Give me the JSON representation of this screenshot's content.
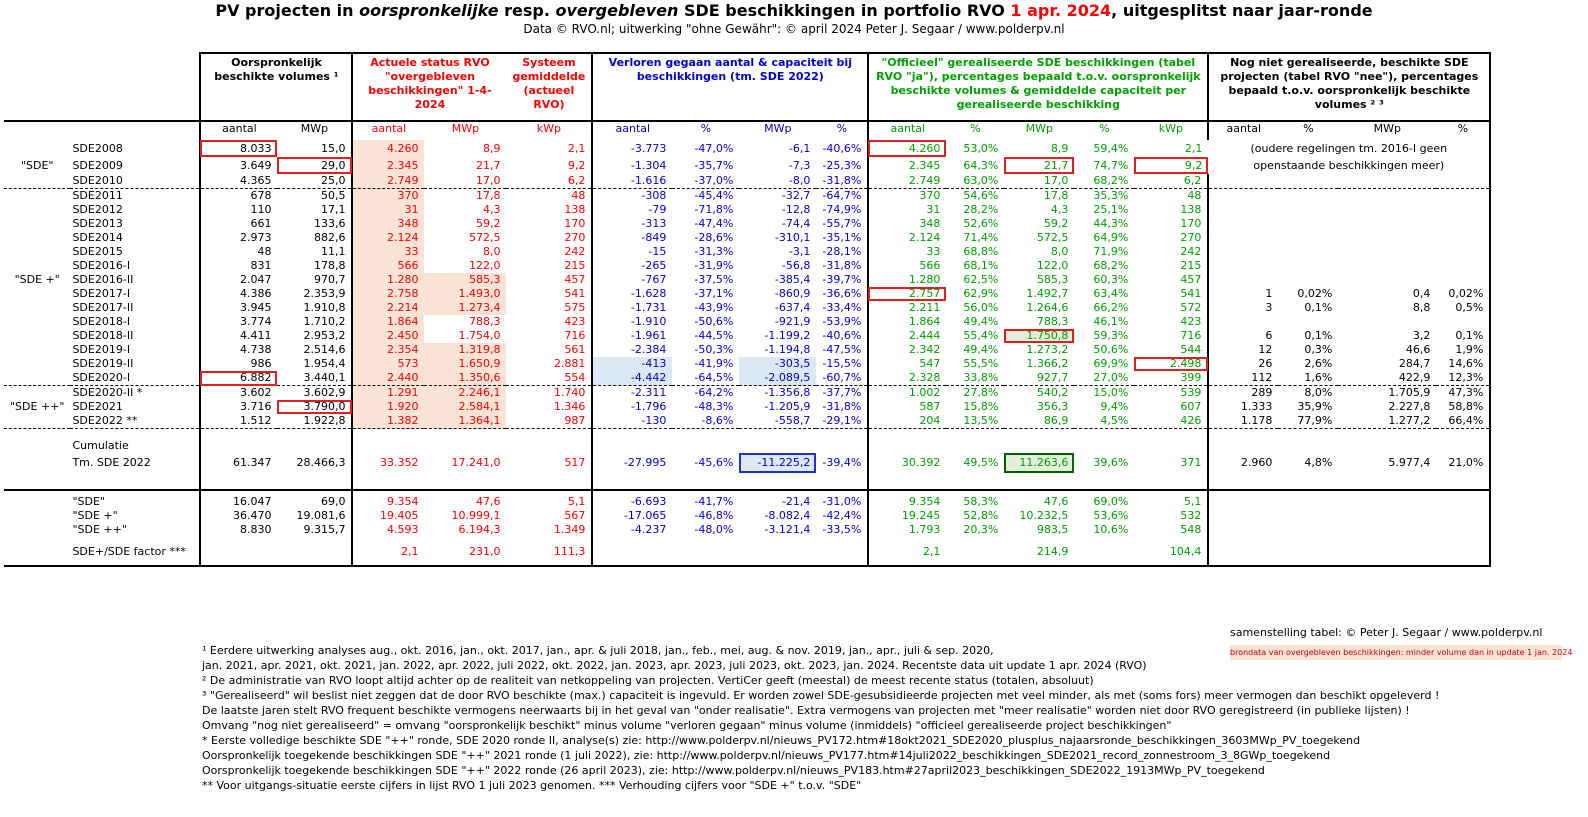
{
  "title": {
    "p1": "PV projecten in ",
    "p2": "oorspronkelijke",
    "p3": " resp. ",
    "p4": "overgebleven",
    "p5": " SDE beschikkingen in portfolio RVO ",
    "p6": "1 apr. 2024",
    "p7": ", uitgesplitst naar jaar-ronde"
  },
  "subtitle": "Data © RVO.nl; uitwerking \"ohne Gewähr\": © april 2024 Peter J. Segaar / www.polderpv.nl",
  "headers": {
    "orig": "Oorspronkelijk beschikte volumes ¹",
    "actueel": "Actuele status RVO \"overgebleven beschikkingen\" 1-4-2024",
    "systeem": "Systeem gemiddelde (actueel RVO)",
    "verloren": "Verloren gegaan aantal & capaciteit bij beschikkingen (tm. SDE 2022)",
    "gerealiseerd": "\"Officieel\" gerealiseerde SDE beschikkingen (tabel RVO \"ja\"), percentages bepaald t.o.v. oorspronkelijk beschikte volumes & gemiddelde capaciteit per gerealiseerde beschikking",
    "nietgereal": "Nog niet gerealiseerde, beschikte SDE projecten (tabel RVO \"nee\"), percentages bepaald t.o.v. oorspronkelijk beschikte volumes ² ³"
  },
  "subheaders": [
    "aantal",
    "MWp",
    "aantal",
    "MWp",
    "kWp",
    "aantal",
    "%",
    "MWp",
    "%",
    "aantal",
    "%",
    "MWp",
    "%",
    "kWp",
    "aantal",
    "%",
    "MWp",
    "%"
  ],
  "groups": {
    "sde": "\"SDE\"",
    "sdeplus": "\"SDE +\"",
    "sdeplusplus": "\"SDE ++\""
  },
  "rows": [
    [
      "SDE2008",
      "8.033",
      "15,0",
      "4.260",
      "8,9",
      "2,1",
      "-3.773",
      "-47,0%",
      "-6,1",
      "-40,6%",
      "4.260",
      "53,0%",
      "8,9",
      "59,4%",
      "2,1",
      "",
      "",
      "",
      ""
    ],
    [
      "SDE2009",
      "3.649",
      "29,0",
      "2.345",
      "21,7",
      "9,2",
      "-1.304",
      "-35,7%",
      "-7,3",
      "-25,3%",
      "2.345",
      "64,3%",
      "21,7",
      "74,7%",
      "9,2",
      "",
      "",
      "",
      ""
    ],
    [
      "SDE2010",
      "4.365",
      "25,0",
      "2.749",
      "17,0",
      "6,2",
      "-1.616",
      "-37,0%",
      "-8,0",
      "-31,8%",
      "2.749",
      "63,0%",
      "17,0",
      "68,2%",
      "6,2",
      "",
      "",
      "",
      ""
    ],
    [
      "SDE2011",
      "678",
      "50,5",
      "370",
      "17,8",
      "48",
      "-308",
      "-45,4%",
      "-32,7",
      "-64,7%",
      "370",
      "54,6%",
      "17,8",
      "35,3%",
      "48",
      "",
      "",
      "",
      ""
    ],
    [
      "SDE2012",
      "110",
      "17,1",
      "31",
      "4,3",
      "138",
      "-79",
      "-71,8%",
      "-12,8",
      "-74,9%",
      "31",
      "28,2%",
      "4,3",
      "25,1%",
      "138",
      "",
      "",
      "",
      ""
    ],
    [
      "SDE2013",
      "661",
      "133,6",
      "348",
      "59,2",
      "170",
      "-313",
      "-47,4%",
      "-74,4",
      "-55,7%",
      "348",
      "52,6%",
      "59,2",
      "44,3%",
      "170",
      "",
      "",
      "",
      ""
    ],
    [
      "SDE2014",
      "2.973",
      "882,6",
      "2.124",
      "572,5",
      "270",
      "-849",
      "-28,6%",
      "-310,1",
      "-35,1%",
      "2.124",
      "71,4%",
      "572,5",
      "64,9%",
      "270",
      "",
      "",
      "",
      ""
    ],
    [
      "SDE2015",
      "48",
      "11,1",
      "33",
      "8,0",
      "242",
      "-15",
      "-31,3%",
      "-3,1",
      "-28,1%",
      "33",
      "68,8%",
      "8,0",
      "71,9%",
      "242",
      "",
      "",
      "",
      ""
    ],
    [
      "SDE2016-I",
      "831",
      "178,8",
      "566",
      "122,0",
      "215",
      "-265",
      "-31,9%",
      "-56,8",
      "-31,8%",
      "566",
      "68,1%",
      "122,0",
      "68,2%",
      "215",
      "",
      "",
      "",
      ""
    ],
    [
      "SDE2016-II",
      "2.047",
      "970,7",
      "1.280",
      "585,3",
      "457",
      "-767",
      "-37,5%",
      "-385,4",
      "-39,7%",
      "1.280",
      "62,5%",
      "585,3",
      "60,3%",
      "457",
      "",
      "",
      "",
      ""
    ],
    [
      "SDE2017-I",
      "4.386",
      "2.353,9",
      "2.758",
      "1.493,0",
      "541",
      "-1.628",
      "-37,1%",
      "-860,9",
      "-36,6%",
      "2.757",
      "62,9%",
      "1.492,7",
      "63,4%",
      "541",
      "1",
      "0,02%",
      "0,4",
      "0,02%"
    ],
    [
      "SDE2017-II",
      "3.945",
      "1.910,8",
      "2.214",
      "1.273,4",
      "575",
      "-1.731",
      "-43,9%",
      "-637,4",
      "-33,4%",
      "2.211",
      "56,0%",
      "1.264,6",
      "66,2%",
      "572",
      "3",
      "0,1%",
      "8,8",
      "0,5%"
    ],
    [
      "SDE2018-I",
      "3.774",
      "1.710,2",
      "1.864",
      "788,3",
      "423",
      "-1.910",
      "-50,6%",
      "-921,9",
      "-53,9%",
      "1.864",
      "49,4%",
      "788,3",
      "46,1%",
      "423",
      "",
      "",
      "",
      ""
    ],
    [
      "SDE2018-II",
      "4.411",
      "2.953,2",
      "2.450",
      "1.754,0",
      "716",
      "-1.961",
      "-44,5%",
      "-1.199,2",
      "-40,6%",
      "2.444",
      "55,4%",
      "1.750,8",
      "59,3%",
      "716",
      "6",
      "0,1%",
      "3,2",
      "0,1%"
    ],
    [
      "SDE2019-I",
      "4.738",
      "2.514,6",
      "2.354",
      "1.319,8",
      "561",
      "-2.384",
      "-50,3%",
      "-1.194,8",
      "-47,5%",
      "2.342",
      "49,4%",
      "1.273,2",
      "50,6%",
      "544",
      "12",
      "0,3%",
      "46,6",
      "1,9%"
    ],
    [
      "SDE2019-II",
      "986",
      "1.954,4",
      "573",
      "1.650,9",
      "2.881",
      "-413",
      "-41,9%",
      "-303,5",
      "-15,5%",
      "547",
      "55,5%",
      "1.366,2",
      "69,9%",
      "2.498",
      "26",
      "2,6%",
      "284,7",
      "14,6%"
    ],
    [
      "SDE2020-I",
      "6.882",
      "3.440,1",
      "2.440",
      "1.350,6",
      "554",
      "-4.442",
      "-64,5%",
      "-2.089,5",
      "-60,7%",
      "2.328",
      "33,8%",
      "927,7",
      "27,0%",
      "399",
      "112",
      "1,6%",
      "422,9",
      "12,3%"
    ],
    [
      "SDE2020-II *",
      "3.602",
      "3.602,9",
      "1.291",
      "2.246,1",
      "1.740",
      "-2.311",
      "-64,2%",
      "-1.356,8",
      "-37,7%",
      "1.002",
      "27,8%",
      "540,2",
      "15,0%",
      "539",
      "289",
      "8,0%",
      "1.705,9",
      "47,3%"
    ],
    [
      "SDE2021",
      "3.716",
      "3.790,0",
      "1.920",
      "2.584,1",
      "1.346",
      "-1.796",
      "-48,3%",
      "-1.205,9",
      "-31,8%",
      "587",
      "15,8%",
      "356,3",
      "9,4%",
      "607",
      "1.333",
      "35,9%",
      "2.227,8",
      "58,8%"
    ],
    [
      "SDE2022 **",
      "1.512",
      "1.922,8",
      "1.382",
      "1.364,1",
      "987",
      "-130",
      "-8,6%",
      "-558,7",
      "-29,1%",
      "204",
      "13,5%",
      "86,9",
      "4,5%",
      "426",
      "1.178",
      "77,9%",
      "1.277,2",
      "66,4%"
    ]
  ],
  "oudere_note": "(oudere regelingen tm. 2016-I geen openstaande beschikkingen meer)",
  "cumulatie": {
    "label1": "Cumulatie",
    "label2": "Tm. SDE 2022",
    "values": [
      "61.347",
      "28.466,3",
      "33.352",
      "17.241,0",
      "517",
      "-27.995",
      "-45,6%",
      "-11.225,2",
      "-39,4%",
      "30.392",
      "49,5%",
      "11.263,6",
      "39,6%",
      "371",
      "2.960",
      "4,8%",
      "5.977,4",
      "21,0%"
    ]
  },
  "summary": [
    [
      "\"SDE\"",
      "16.047",
      "69,0",
      "9.354",
      "47,6",
      "5,1",
      "-6.693",
      "-41,7%",
      "-21,4",
      "-31,0%",
      "9.354",
      "58,3%",
      "47,6",
      "69,0%",
      "5,1",
      "",
      "",
      "",
      ""
    ],
    [
      "\"SDE +\"",
      "36.470",
      "19.081,6",
      "19.405",
      "10.999,1",
      "567",
      "-17.065",
      "-46,8%",
      "-8.082,4",
      "-42,4%",
      "19.245",
      "52,8%",
      "10.232,5",
      "53,6%",
      "532",
      "",
      "",
      "",
      ""
    ],
    [
      "\"SDE ++\"",
      "8.830",
      "9.315,7",
      "4.593",
      "6.194,3",
      "1.349",
      "-4.237",
      "-48,0%",
      "-3.121,4",
      "-33,5%",
      "1.793",
      "20,3%",
      "983,5",
      "10,6%",
      "548",
      "",
      "",
      "",
      ""
    ]
  ],
  "factor": {
    "label": "SDE+/SDE factor ***",
    "values": [
      "",
      "",
      "2,1",
      "231,0",
      "111,3",
      "",
      "",
      "",
      "",
      "2,1",
      "",
      "214,9",
      "",
      "104,4",
      "",
      "",
      "",
      ""
    ]
  },
  "credit": "samenstelling tabel: © Peter J. Segaar / www.polderpv.nl",
  "legend_note": "brondata van overgebleven beschikkingen: minder volume dan in update 1 jan. 2024",
  "notes": [
    "¹ Eerdere uitwerking analyses aug., okt. 2016, jan., okt.  2017, jan., apr. & juli 2018, jan., feb., mei, aug. & nov. 2019, jan., apr., juli & sep. 2020,",
    "   jan. 2021, apr. 2021, okt. 2021, jan. 2022, apr. 2022, juli 2022, okt. 2022, jan. 2023, apr. 2023, juli 2023, okt. 2023, jan. 2024. Recentste data uit update 1 apr. 2024 (RVO)",
    "² De administratie van RVO loopt altijd achter op de realiteit van netkoppeling van projecten. VertiCer geeft (meestal) de meest recente status (totalen, absoluut)",
    "³ \"Gerealiseerd\" wil beslist niet zeggen dat de door RVO beschikte (max.) capaciteit is ingevuld. Er worden zowel SDE-gesubsidieerde projecten met veel minder, als met (soms fors) meer vermogen dan beschikt opgeleverd !",
    "De laatste jaren stelt RVO frequent beschikte vermogens neerwaarts bij in het geval van \"onder realisatie\". Extra vermogens van projecten met \"meer realisatie\" worden niet door RVO geregistreerd (in publieke lijsten) !",
    "Omvang \"nog niet gerealiseerd\" = omvang \"oorspronkelijk beschikt\" minus volume \"verloren gegaan\" minus volume (inmiddels) \"officieel gerealiseerde project beschikkingen\"",
    "* Eerste volledige beschikte SDE \"++\" ronde, SDE 2020 ronde II, analyse(s) zie: http://www.polderpv.nl/nieuws_PV172.htm#18okt2021_SDE2020_plusplus_najaarsronde_beschikkingen_3603MWp_PV_toegekend",
    "Oorspronkelijk toegekende beschikkingen SDE \"++\" 2021 ronde (1 juli 2022), zie: http://www.polderpv.nl/nieuws_PV177.htm#14juli2022_beschikkingen_SDE2021_record_zonnestroom_3_8GWp_toegekend",
    "Oorspronkelijk toegekende beschikkingen SDE \"++\" 2022 ronde (26 april 2023), zie: http://www.polderpv.nl/nieuws_PV183.htm#27april2023_beschikkingen_SDE2022_1913MWp_PV_toegekend",
    "** Voor uitgangs-situatie eerste cijfers in lijst RVO 1 juli 2023 genomen. *** Verhouding cijfers voor \"SDE +\" t.o.v. \"SDE\""
  ]
}
